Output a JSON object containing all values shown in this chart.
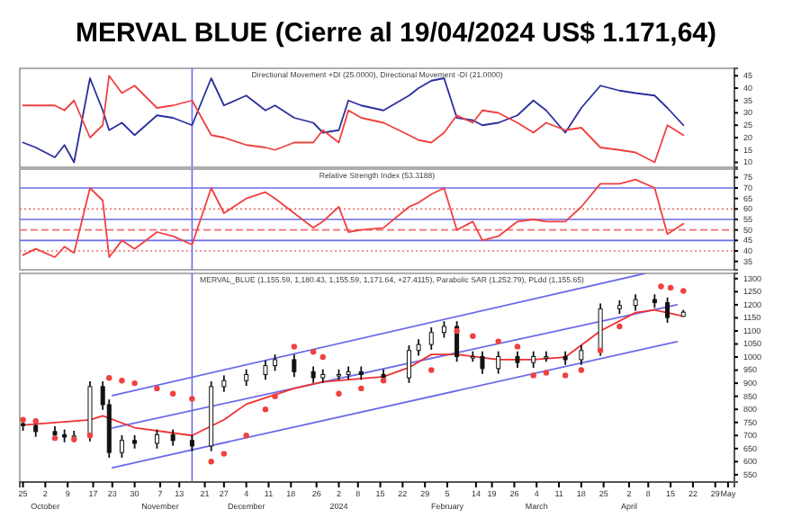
{
  "chart_data": [
    {
      "type": "line",
      "title": "MERVAL BLUE (Cierre al 19/04/2024 US$ 1.171,64)",
      "subtitle": "Directional Movement +DI (25.0000), Directional Movement -DI (21.0000)",
      "x": [
        "2023-09-25",
        "2023-09-29",
        "2023-10-05",
        "2023-10-08",
        "2023-10-11",
        "2023-10-16",
        "2023-10-20",
        "2023-10-22",
        "2023-10-26",
        "2023-10-30",
        "2023-11-06",
        "2023-11-11",
        "2023-11-17",
        "2023-11-23",
        "2023-11-27",
        "2023-12-04",
        "2023-12-10",
        "2023-12-13",
        "2023-12-19",
        "2023-12-25",
        "2023-12-28",
        "2024-01-02",
        "2024-01-05",
        "2024-01-09",
        "2024-01-16",
        "2024-01-24",
        "2024-01-27",
        "2024-01-31",
        "2024-02-04",
        "2024-02-08",
        "2024-02-13",
        "2024-02-16",
        "2024-02-21",
        "2024-02-27",
        "2024-03-03",
        "2024-03-07",
        "2024-03-13",
        "2024-03-18",
        "2024-03-24",
        "2024-03-30",
        "2024-04-04",
        "2024-04-10",
        "2024-04-14",
        "2024-04-19"
      ],
      "series": [
        {
          "color": "#2b2f9c",
          "values": [
            18,
            16,
            12,
            17,
            10,
            44,
            31,
            23,
            26,
            21,
            29,
            28,
            25,
            44,
            33,
            37,
            31,
            33,
            28,
            26,
            22,
            23,
            35,
            33,
            31,
            37,
            40,
            43,
            44,
            28,
            27,
            25,
            26,
            29,
            35,
            31,
            22,
            32,
            41,
            39,
            38,
            37,
            32,
            25
          ]
        },
        {
          "color": "#f04040",
          "values": [
            33,
            33,
            33,
            31,
            35,
            20,
            25,
            45,
            38,
            41,
            32,
            33,
            35,
            21,
            20,
            17,
            16,
            15,
            18,
            18,
            23,
            18,
            31,
            28,
            26,
            21,
            19,
            18,
            22,
            29,
            26,
            31,
            30,
            26,
            22,
            26,
            23,
            24,
            16,
            15,
            14,
            10,
            25,
            21
          ]
        }
      ],
      "xlim": [
        "2023-09-24",
        "2024-05-05"
      ],
      "ylim": [
        8,
        48
      ],
      "yticks": [
        10,
        15,
        20,
        25,
        30,
        35,
        40,
        45
      ],
      "tick_labels": "y",
      "ref_lines": [
        {
          "axis": "x",
          "value": "2023-11-17",
          "color": "#6b6bea"
        }
      ]
    },
    {
      "type": "line",
      "subtitle": "Relative Strength Index (53.3188)",
      "x": [
        "2023-09-25",
        "2023-09-29",
        "2023-10-05",
        "2023-10-08",
        "2023-10-11",
        "2023-10-16",
        "2023-10-20",
        "2023-10-22",
        "2023-10-26",
        "2023-10-30",
        "2023-11-06",
        "2023-11-11",
        "2023-11-17",
        "2023-11-23",
        "2023-11-27",
        "2023-12-04",
        "2023-12-10",
        "2023-12-13",
        "2023-12-19",
        "2023-12-25",
        "2023-12-28",
        "2024-01-02",
        "2024-01-05",
        "2024-01-09",
        "2024-01-16",
        "2024-01-24",
        "2024-01-27",
        "2024-01-31",
        "2024-02-04",
        "2024-02-08",
        "2024-02-13",
        "2024-02-16",
        "2024-02-21",
        "2024-02-27",
        "2024-03-03",
        "2024-03-07",
        "2024-03-13",
        "2024-03-18",
        "2024-03-24",
        "2024-03-30",
        "2024-04-04",
        "2024-04-10",
        "2024-04-14",
        "2024-04-19"
      ],
      "series": [
        {
          "color": "#f04040",
          "values": [
            38,
            41,
            37,
            42,
            39,
            70,
            64,
            37,
            45,
            41,
            49,
            47,
            43,
            70,
            58,
            65,
            68,
            65,
            58,
            51,
            54,
            61,
            49,
            50,
            51,
            61,
            63,
            67,
            70,
            50,
            54,
            45,
            47,
            54,
            55,
            54,
            54,
            61,
            72,
            72,
            74,
            70,
            48,
            53
          ]
        }
      ],
      "xlim": [
        "2023-09-24",
        "2024-05-05"
      ],
      "ylim": [
        31,
        79
      ],
      "yticks": [
        35,
        40,
        45,
        50,
        55,
        60,
        65,
        70,
        75
      ],
      "tick_labels": "y",
      "ref_lines": [
        {
          "axis": "y",
          "value": 70,
          "color": "#6b6bea",
          "line_style": "solid"
        },
        {
          "axis": "y",
          "value": 55,
          "color": "#6b6bea",
          "line_style": "solid"
        },
        {
          "axis": "y",
          "value": 45,
          "color": "#6b6bea",
          "line_style": "solid"
        },
        {
          "axis": "y",
          "value": 60,
          "color": "#f07070",
          "line_style": "dotted"
        },
        {
          "axis": "y",
          "value": 50,
          "color": "#f07070",
          "line_style": "dashed"
        },
        {
          "axis": "y",
          "value": 40,
          "color": "#f07070",
          "line_style": "dotted"
        },
        {
          "axis": "x",
          "value": "2023-11-17",
          "color": "#6b6bea"
        }
      ]
    },
    {
      "type": "candlestick",
      "subtitle": "MERVAL_BLUE (1,155.59, 1,180.43, 1,155.59, 1,171.64, +27.4115), Parabolic SAR (1,252.79), PLdd (1,155.65)",
      "x": [
        "2023-09-25",
        "2023-09-29",
        "2023-10-05",
        "2023-10-08",
        "2023-10-11",
        "2023-10-16",
        "2023-10-20",
        "2023-10-22",
        "2023-10-26",
        "2023-10-30",
        "2023-11-06",
        "2023-11-11",
        "2023-11-17",
        "2023-11-23",
        "2023-11-27",
        "2023-12-04",
        "2023-12-10",
        "2023-12-13",
        "2023-12-19",
        "2023-12-25",
        "2023-12-28",
        "2024-01-02",
        "2024-01-05",
        "2024-01-09",
        "2024-01-16",
        "2024-01-24",
        "2024-01-27",
        "2024-01-31",
        "2024-02-04",
        "2024-02-08",
        "2024-02-13",
        "2024-02-16",
        "2024-02-21",
        "2024-02-27",
        "2024-03-03",
        "2024-03-07",
        "2024-03-13",
        "2024-03-18",
        "2024-03-24",
        "2024-03-30",
        "2024-04-04",
        "2024-04-10",
        "2024-04-14",
        "2024-04-19"
      ],
      "ohlc": [
        [
          745,
          765,
          718,
          738
        ],
        [
          738,
          758,
          695,
          715
        ],
        [
          715,
          735,
          683,
          703
        ],
        [
          703,
          723,
          674,
          694
        ],
        [
          694,
          718,
          674,
          698
        ],
        [
          698,
          907,
          678,
          887
        ],
        [
          887,
          907,
          798,
          818
        ],
        [
          818,
          838,
          615,
          635
        ],
        [
          635,
          701,
          615,
          681
        ],
        [
          681,
          701,
          650,
          670
        ],
        [
          670,
          723,
          650,
          703
        ],
        [
          703,
          723,
          661,
          681
        ],
        [
          681,
          701,
          640,
          660
        ],
        [
          660,
          907,
          640,
          887
        ],
        [
          887,
          930,
          867,
          910
        ],
        [
          910,
          953,
          890,
          933
        ],
        [
          933,
          987,
          913,
          967
        ],
        [
          967,
          1010,
          947,
          990
        ],
        [
          990,
          1010,
          924,
          944
        ],
        [
          944,
          964,
          901,
          921
        ],
        [
          921,
          953,
          901,
          933
        ],
        [
          933,
          953,
          913,
          933
        ],
        [
          933,
          964,
          913,
          944
        ],
        [
          944,
          964,
          913,
          933
        ],
        [
          933,
          953,
          901,
          921
        ],
        [
          921,
          1045,
          901,
          1025
        ],
        [
          1025,
          1068,
          1005,
          1048
        ],
        [
          1048,
          1114,
          1028,
          1094
        ],
        [
          1094,
          1137,
          1074,
          1117
        ],
        [
          1117,
          1137,
          982,
          1002
        ],
        [
          1002,
          1022,
          982,
          1002
        ],
        [
          1002,
          1022,
          936,
          956
        ],
        [
          956,
          1022,
          936,
          1002
        ],
        [
          1002,
          1022,
          959,
          979
        ],
        [
          979,
          1022,
          959,
          1002
        ],
        [
          1002,
          1022,
          982,
          1002
        ],
        [
          1002,
          1022,
          970,
          990
        ],
        [
          990,
          1045,
          970,
          1025
        ],
        [
          1025,
          1205,
          1005,
          1185
        ],
        [
          1185,
          1217,
          1165,
          1197
        ],
        [
          1197,
          1240,
          1177,
          1220
        ],
        [
          1220,
          1240,
          1188,
          1208
        ],
        [
          1208,
          1228,
          1131,
          1151
        ],
        [
          1155.59,
          1180.43,
          1155.59,
          1171.64
        ]
      ],
      "series": [
        {
          "type": "line",
          "color": "#6b6bea",
          "x": [
            "2023-10-23",
            "2024-04-07"
          ],
          "values": [
            853,
            1320
          ]
        },
        {
          "type": "line",
          "color": "#6b6bea",
          "x": [
            "2023-10-23",
            "2024-04-17"
          ],
          "values": [
            729,
            1200
          ]
        },
        {
          "type": "line",
          "color": "#6b6bea",
          "x": [
            "2023-10-23",
            "2024-04-17"
          ],
          "values": [
            577,
            1059
          ]
        },
        {
          "type": "line",
          "color": "#f03030",
          "x": [
            "2023-09-25",
            "2023-10-16",
            "2023-10-20",
            "2023-10-30",
            "2023-11-17",
            "2023-11-27",
            "2023-12-04",
            "2023-12-19",
            "2023-12-28",
            "2024-01-16",
            "2024-01-24",
            "2024-01-31",
            "2024-02-08",
            "2024-02-21",
            "2024-03-03",
            "2024-03-13",
            "2024-03-24",
            "2024-04-04",
            "2024-04-10",
            "2024-04-19"
          ],
          "values": [
            740,
            760,
            775,
            730,
            700,
            760,
            820,
            880,
            905,
            925,
            960,
            1010,
            1010,
            990,
            990,
            1000,
            1100,
            1170,
            1180,
            1156
          ]
        },
        {
          "type": "scatter",
          "color": "#f04040",
          "marker": "circle",
          "x": [
            "2023-09-25",
            "2023-09-29",
            "2023-10-05",
            "2023-10-11",
            "2023-10-16",
            "2023-10-22",
            "2023-10-26",
            "2023-10-30",
            "2023-11-06",
            "2023-11-11",
            "2023-11-17",
            "2023-11-23",
            "2023-11-27",
            "2023-12-04",
            "2023-12-10",
            "2023-12-13",
            "2023-12-19",
            "2023-12-25",
            "2023-12-28",
            "2024-01-02",
            "2024-01-09",
            "2024-01-16",
            "2024-01-31",
            "2024-02-08",
            "2024-02-13",
            "2024-02-21",
            "2024-02-27",
            "2024-03-03",
            "2024-03-07",
            "2024-03-13",
            "2024-03-18",
            "2024-03-24",
            "2024-03-30",
            "2024-04-12",
            "2024-04-15",
            "2024-04-19"
          ],
          "values": [
            760,
            755,
            690,
            685,
            700,
            920,
            910,
            900,
            880,
            860,
            840,
            600,
            630,
            700,
            800,
            850,
            1040,
            1020,
            1000,
            860,
            880,
            910,
            950,
            1100,
            1080,
            1060,
            1040,
            930,
            940,
            930,
            950,
            1025,
            1117,
            1270,
            1265,
            1253
          ]
        }
      ],
      "xlim": [
        "2023-09-24",
        "2024-05-05"
      ],
      "ylim": [
        522,
        1320
      ],
      "yticks": [
        550,
        600,
        650,
        700,
        750,
        800,
        850,
        900,
        950,
        1000,
        1050,
        1100,
        1150,
        1200,
        1250,
        1300
      ],
      "xticks": [
        {
          "value": "2023-09-25",
          "label": "25"
        },
        {
          "value": "2023-10-02",
          "label": "2\nOctober"
        },
        {
          "value": "2023-10-09",
          "label": "9"
        },
        {
          "value": "2023-10-17",
          "label": "17"
        },
        {
          "value": "2023-10-23",
          "label": "23"
        },
        {
          "value": "2023-10-30",
          "label": "30"
        },
        {
          "value": "2023-11-07",
          "label": "7\nNovember"
        },
        {
          "value": "2023-11-13",
          "label": "13"
        },
        {
          "value": "2023-11-21",
          "label": "21"
        },
        {
          "value": "2023-11-27",
          "label": "27"
        },
        {
          "value": "2023-12-04",
          "label": "4\nDecember"
        },
        {
          "value": "2023-12-11",
          "label": "11"
        },
        {
          "value": "2023-12-18",
          "label": "18"
        },
        {
          "value": "2023-12-26",
          "label": "26"
        },
        {
          "value": "2024-01-02",
          "label": "2\n2024"
        },
        {
          "value": "2024-01-08",
          "label": "8"
        },
        {
          "value": "2024-01-15",
          "label": "15"
        },
        {
          "value": "2024-01-22",
          "label": "22"
        },
        {
          "value": "2024-01-29",
          "label": "29"
        },
        {
          "value": "2024-02-05",
          "label": "5\nFebruary"
        },
        {
          "value": "2024-02-14",
          "label": "14"
        },
        {
          "value": "2024-02-19",
          "label": "19"
        },
        {
          "value": "2024-02-26",
          "label": "26"
        },
        {
          "value": "2024-03-04",
          "label": "4\nMarch"
        },
        {
          "value": "2024-03-11",
          "label": "11"
        },
        {
          "value": "2024-03-18",
          "label": "18"
        },
        {
          "value": "2024-03-25",
          "label": "25"
        },
        {
          "value": "2024-04-02",
          "label": "2\nApril"
        },
        {
          "value": "2024-04-08",
          "label": "8"
        },
        {
          "value": "2024-04-15",
          "label": "15"
        },
        {
          "value": "2024-04-22",
          "label": "22"
        },
        {
          "value": "2024-04-29",
          "label": "29"
        },
        {
          "value": "2024-05-03",
          "label": "May"
        }
      ],
      "ref_lines": [
        {
          "axis": "x",
          "value": "2023-11-17",
          "color": "#6b6bea"
        }
      ]
    }
  ]
}
